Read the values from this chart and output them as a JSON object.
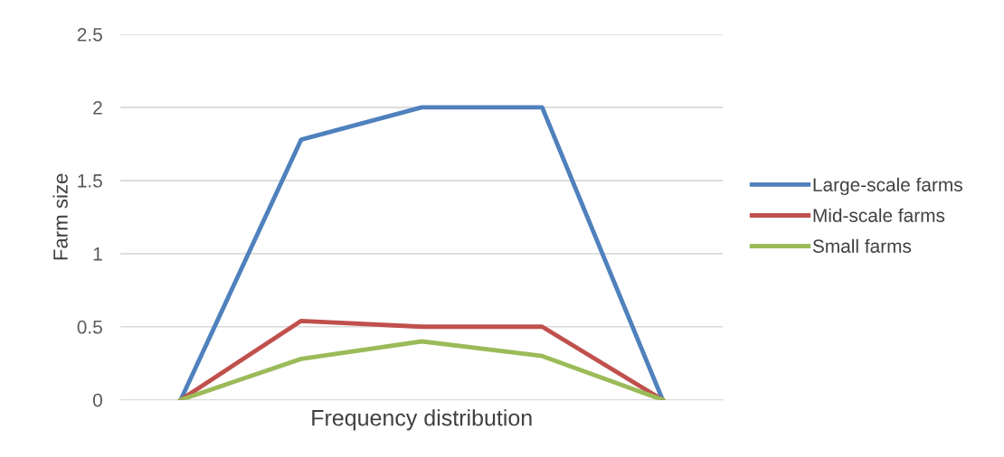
{
  "chart_data": {
    "type": "line",
    "xlabel": "Frequency distribution",
    "ylabel": "Farm size",
    "categories": [
      null,
      null,
      null,
      null,
      null
    ],
    "series": [
      {
        "name": "Large-scale farms",
        "color": "#4f81bd",
        "values": [
          0,
          1.78,
          2,
          2,
          0
        ]
      },
      {
        "name": "Mid-scale farms",
        "color": "#c0504d",
        "values": [
          0,
          0.54,
          0.5,
          0.5,
          0
        ]
      },
      {
        "name": "Small farms",
        "color": "#9bbb59",
        "values": [
          0,
          0.28,
          0.4,
          0.3,
          0
        ]
      }
    ],
    "ylim": [
      0,
      2.5
    ],
    "yticks": [
      0,
      0.5,
      1,
      1.5,
      2,
      2.5
    ],
    "grid": "y",
    "legend": "right",
    "marker": "none",
    "line_style": "solid"
  }
}
